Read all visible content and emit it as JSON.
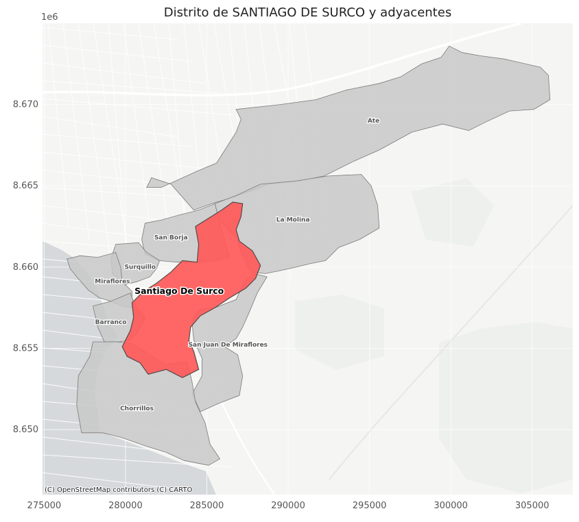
{
  "title": "Distrito de SANTIAGO DE SURCO y adyacentes",
  "y_offset_label": "1e6",
  "x_ticks": [
    {
      "value": 275000,
      "label": "275000"
    },
    {
      "value": 280000,
      "label": "280000"
    },
    {
      "value": 285000,
      "label": "285000"
    },
    {
      "value": 290000,
      "label": "290000"
    },
    {
      "value": 295000,
      "label": "295000"
    },
    {
      "value": 300000,
      "label": "300000"
    },
    {
      "value": 305000,
      "label": "305000"
    }
  ],
  "y_ticks": [
    {
      "value": 8650000,
      "label": "8.650"
    },
    {
      "value": 8655000,
      "label": "8.655"
    },
    {
      "value": 8660000,
      "label": "8.660"
    },
    {
      "value": 8665000,
      "label": "8.665"
    },
    {
      "value": 8670000,
      "label": "8.670"
    }
  ],
  "extent": {
    "xmin": 274900,
    "xmax": 307500,
    "ymin": 8646000,
    "ymax": 8675000
  },
  "attribution": "(C) OpenStreetMap contributors (C) CARTO",
  "highlight_color": "#ff5a5a",
  "neighbor_color": "#c8c8c8",
  "districts": [
    {
      "id": "ate",
      "name": "Ate",
      "label_xy": [
        295250,
        8669000
      ],
      "highlight": false,
      "shape": [
        [
          286800,
          8669700
        ],
        [
          289500,
          8670000
        ],
        [
          291700,
          8670300
        ],
        [
          293600,
          8670900
        ],
        [
          295600,
          8671300
        ],
        [
          296900,
          8671700
        ],
        [
          298200,
          8672500
        ],
        [
          299400,
          8672900
        ],
        [
          299900,
          8673600
        ],
        [
          300700,
          8673200
        ],
        [
          301800,
          8673000
        ],
        [
          303300,
          8672800
        ],
        [
          305500,
          8672300
        ],
        [
          306000,
          8671800
        ],
        [
          306100,
          8670300
        ],
        [
          305100,
          8669700
        ],
        [
          303600,
          8669600
        ],
        [
          302100,
          8668900
        ],
        [
          301100,
          8668400
        ],
        [
          299500,
          8668800
        ],
        [
          297600,
          8668300
        ],
        [
          295600,
          8667200
        ],
        [
          294000,
          8666500
        ],
        [
          292200,
          8665600
        ],
        [
          290700,
          8665300
        ],
        [
          288800,
          8665100
        ],
        [
          287500,
          8664600
        ],
        [
          286300,
          8664200
        ],
        [
          285300,
          8663900
        ],
        [
          284200,
          8663500
        ],
        [
          282800,
          8665100
        ],
        [
          281600,
          8665500
        ],
        [
          281300,
          8664900
        ],
        [
          282200,
          8664900
        ],
        [
          283300,
          8665400
        ],
        [
          284400,
          8665900
        ],
        [
          285600,
          8666400
        ],
        [
          286300,
          8667500
        ],
        [
          286800,
          8668300
        ],
        [
          287100,
          8669100
        ]
      ]
    },
    {
      "id": "la-molina",
      "name": "La Molina",
      "label_xy": [
        290300,
        8662900
      ],
      "highlight": false,
      "shape": [
        [
          285500,
          8663900
        ],
        [
          286800,
          8664400
        ],
        [
          288300,
          8665100
        ],
        [
          290500,
          8665300
        ],
        [
          292400,
          8665600
        ],
        [
          294500,
          8665700
        ],
        [
          295100,
          8665000
        ],
        [
          295500,
          8663800
        ],
        [
          295600,
          8662400
        ],
        [
          294400,
          8661700
        ],
        [
          293100,
          8661200
        ],
        [
          292300,
          8660400
        ],
        [
          291300,
          8660200
        ],
        [
          290500,
          8660000
        ],
        [
          289600,
          8659800
        ],
        [
          288600,
          8659600
        ],
        [
          287700,
          8659700
        ],
        [
          287200,
          8660700
        ],
        [
          286800,
          8661800
        ],
        [
          286200,
          8662400
        ],
        [
          285700,
          8663000
        ]
      ]
    },
    {
      "id": "san-borja",
      "name": "San Borja",
      "label_xy": [
        282800,
        8661800
      ],
      "highlight": false,
      "shape": [
        [
          281200,
          8662700
        ],
        [
          282200,
          8662900
        ],
        [
          283300,
          8663200
        ],
        [
          284500,
          8663500
        ],
        [
          285500,
          8663900
        ],
        [
          285800,
          8662700
        ],
        [
          286100,
          8661600
        ],
        [
          286400,
          8660600
        ],
        [
          285600,
          8660400
        ],
        [
          284400,
          8660300
        ],
        [
          283200,
          8660300
        ],
        [
          282000,
          8660400
        ],
        [
          281200,
          8660800
        ],
        [
          281000,
          8661700
        ]
      ]
    },
    {
      "id": "surquillo",
      "name": "Surquillo",
      "label_xy": [
        280900,
        8660000
      ],
      "highlight": false,
      "shape": [
        [
          279400,
          8661400
        ],
        [
          280800,
          8661500
        ],
        [
          281300,
          8660900
        ],
        [
          282100,
          8660400
        ],
        [
          281900,
          8659900
        ],
        [
          281500,
          8659400
        ],
        [
          280700,
          8659100
        ],
        [
          279900,
          8658900
        ],
        [
          279200,
          8659600
        ],
        [
          279100,
          8660500
        ]
      ]
    },
    {
      "id": "miraflores",
      "name": "Miraflores",
      "label_xy": [
        279200,
        8659100
      ],
      "highlight": false,
      "shape": [
        [
          276400,
          8660500
        ],
        [
          277200,
          8660700
        ],
        [
          278300,
          8660600
        ],
        [
          279400,
          8660900
        ],
        [
          279700,
          8660000
        ],
        [
          279800,
          8659100
        ],
        [
          280400,
          8658500
        ],
        [
          280400,
          8657500
        ],
        [
          279800,
          8657600
        ],
        [
          279100,
          8657900
        ],
        [
          278400,
          8658100
        ],
        [
          277700,
          8658600
        ],
        [
          277000,
          8659400
        ],
        [
          276600,
          8659900
        ]
      ]
    },
    {
      "id": "barranco",
      "name": "Barranco",
      "label_xy": [
        279100,
        8656600
      ],
      "highlight": false,
      "shape": [
        [
          278000,
          8657600
        ],
        [
          279100,
          8657900
        ],
        [
          280300,
          8658400
        ],
        [
          280600,
          8657600
        ],
        [
          281200,
          8656900
        ],
        [
          280700,
          8655900
        ],
        [
          280300,
          8655500
        ],
        [
          279600,
          8655400
        ],
        [
          278700,
          8655400
        ],
        [
          278300,
          8656300
        ]
      ]
    },
    {
      "id": "san-juan-de-miraflores",
      "name": "San Juan De Miraflores",
      "label_xy": [
        286300,
        8655200
      ],
      "highlight": false,
      "shape": [
        [
          284600,
          8657400
        ],
        [
          285500,
          8657500
        ],
        [
          286800,
          8658000
        ],
        [
          287300,
          8659100
        ],
        [
          287900,
          8659600
        ],
        [
          288700,
          8659400
        ],
        [
          288100,
          8658400
        ],
        [
          287600,
          8657200
        ],
        [
          287200,
          8656300
        ],
        [
          286800,
          8655600
        ],
        [
          286100,
          8655100
        ],
        [
          286900,
          8654600
        ],
        [
          287200,
          8653300
        ],
        [
          287000,
          8652100
        ],
        [
          285700,
          8651600
        ],
        [
          284600,
          8651100
        ],
        [
          284100,
          8652200
        ],
        [
          284700,
          8653300
        ],
        [
          284700,
          8654400
        ],
        [
          284200,
          8655500
        ],
        [
          284100,
          8656500
        ],
        [
          284300,
          8657100
        ]
      ]
    },
    {
      "id": "chorrillos",
      "name": "Chorrillos",
      "label_xy": [
        280700,
        8651300
      ],
      "highlight": false,
      "shape": [
        [
          278000,
          8655400
        ],
        [
          279500,
          8655400
        ],
        [
          280400,
          8655300
        ],
        [
          281200,
          8654800
        ],
        [
          282400,
          8654000
        ],
        [
          283800,
          8654200
        ],
        [
          284100,
          8652900
        ],
        [
          284300,
          8651700
        ],
        [
          284900,
          8650400
        ],
        [
          285200,
          8649100
        ],
        [
          285800,
          8648200
        ],
        [
          285100,
          8647800
        ],
        [
          283600,
          8648100
        ],
        [
          282500,
          8648600
        ],
        [
          281200,
          8649000
        ],
        [
          279800,
          8649500
        ],
        [
          278600,
          8649800
        ],
        [
          277300,
          8649800
        ],
        [
          277000,
          8651500
        ],
        [
          277100,
          8653300
        ],
        [
          277800,
          8654500
        ]
      ]
    },
    {
      "id": "santiago-de-surco",
      "name": "Santiago De Surco",
      "label_xy": [
        283300,
        8658500
      ],
      "highlight": true,
      "shape": [
        [
          284300,
          8662500
        ],
        [
          285900,
          8663500
        ],
        [
          286600,
          8664000
        ],
        [
          287200,
          8663900
        ],
        [
          287100,
          8663100
        ],
        [
          286800,
          8662300
        ],
        [
          287000,
          8661600
        ],
        [
          287800,
          8661000
        ],
        [
          288300,
          8660100
        ],
        [
          288000,
          8659300
        ],
        [
          287400,
          8658700
        ],
        [
          286400,
          8658100
        ],
        [
          285500,
          8657500
        ],
        [
          284600,
          8657000
        ],
        [
          284000,
          8656300
        ],
        [
          283900,
          8655500
        ],
        [
          284200,
          8654800
        ],
        [
          284500,
          8653700
        ],
        [
          283500,
          8653200
        ],
        [
          282500,
          8653700
        ],
        [
          281400,
          8653400
        ],
        [
          280900,
          8654100
        ],
        [
          280100,
          8654500
        ],
        [
          279800,
          8655100
        ],
        [
          280300,
          8656100
        ],
        [
          280500,
          8656900
        ],
        [
          280400,
          8657800
        ],
        [
          281100,
          8658500
        ],
        [
          281900,
          8659000
        ],
        [
          282800,
          8659700
        ],
        [
          283500,
          8660400
        ],
        [
          284400,
          8660300
        ],
        [
          284500,
          8661400
        ]
      ]
    }
  ]
}
